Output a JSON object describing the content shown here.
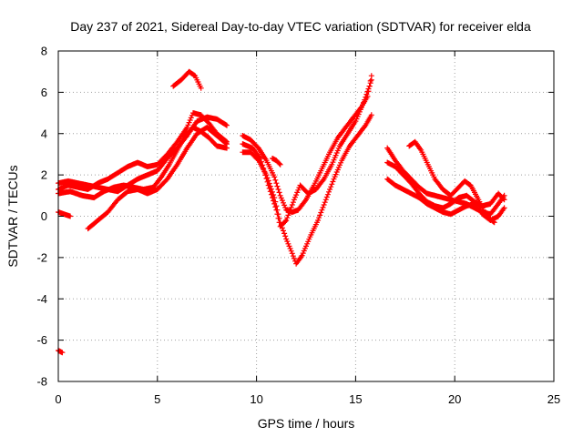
{
  "chart_data": {
    "type": "scatter",
    "title": "Day 237 of 2021, Sidereal Day-to-day VTEC variation (SDTVAR) for receiver elda",
    "xlabel": "GPS time / hours",
    "ylabel": "SDTVAR / TECUs",
    "xlim": [
      0,
      25
    ],
    "ylim": [
      -8,
      8
    ],
    "x_ticks": [
      0,
      5,
      10,
      15,
      20,
      25
    ],
    "y_ticks": [
      -8,
      -6,
      -4,
      -2,
      0,
      2,
      4,
      6,
      8
    ],
    "x_tick_labels": [
      "0",
      "5",
      "10",
      "15",
      "20",
      "25"
    ],
    "y_tick_labels": [
      "-8",
      "-6",
      "-4",
      "-2",
      "0",
      "2",
      "4",
      "6",
      "8"
    ],
    "grid": true,
    "marker": "+",
    "color": "#ff0000",
    "series": [
      {
        "name": "track-1",
        "points": [
          [
            0.0,
            1.3
          ],
          [
            0.5,
            1.5
          ],
          [
            1.0,
            1.4
          ],
          [
            1.5,
            1.3
          ],
          [
            2.0,
            1.6
          ],
          [
            2.5,
            1.8
          ],
          [
            3.0,
            2.1
          ],
          [
            3.5,
            2.4
          ],
          [
            4.0,
            2.6
          ],
          [
            4.5,
            2.4
          ],
          [
            5.0,
            2.5
          ],
          [
            5.5,
            3.0
          ],
          [
            6.0,
            3.6
          ],
          [
            6.5,
            4.3
          ],
          [
            6.8,
            5.0
          ],
          [
            7.2,
            4.9
          ],
          [
            7.6,
            4.5
          ],
          [
            8.0,
            4.0
          ],
          [
            8.5,
            3.6
          ]
        ]
      },
      {
        "name": "track-2",
        "points": [
          [
            0.0,
            1.1
          ],
          [
            0.6,
            1.2
          ],
          [
            1.2,
            1.0
          ],
          [
            1.8,
            0.9
          ],
          [
            2.3,
            1.2
          ],
          [
            2.8,
            1.4
          ],
          [
            3.3,
            1.5
          ],
          [
            3.8,
            1.4
          ],
          [
            4.3,
            1.3
          ],
          [
            4.8,
            1.4
          ],
          [
            5.2,
            1.9
          ],
          [
            5.6,
            2.5
          ],
          [
            6.0,
            3.2
          ],
          [
            6.4,
            3.9
          ],
          [
            6.8,
            4.3
          ],
          [
            7.2,
            4.1
          ],
          [
            7.6,
            3.8
          ],
          [
            8.0,
            3.4
          ],
          [
            8.5,
            3.3
          ]
        ]
      },
      {
        "name": "track-3",
        "points": [
          [
            0.0,
            1.6
          ],
          [
            0.5,
            1.7
          ],
          [
            1.0,
            1.6
          ],
          [
            1.5,
            1.5
          ],
          [
            2.0,
            1.4
          ],
          [
            2.5,
            1.3
          ],
          [
            3.0,
            1.2
          ],
          [
            3.5,
            1.5
          ],
          [
            4.0,
            1.8
          ],
          [
            4.5,
            2.0
          ],
          [
            5.0,
            2.2
          ],
          [
            5.5,
            2.8
          ],
          [
            6.0,
            3.3
          ],
          [
            6.5,
            3.9
          ],
          [
            7.0,
            4.6
          ],
          [
            7.5,
            4.8
          ],
          [
            8.0,
            4.7
          ],
          [
            8.5,
            4.4
          ]
        ]
      },
      {
        "name": "track-4",
        "points": [
          [
            1.5,
            -0.6
          ],
          [
            2.0,
            -0.2
          ],
          [
            2.5,
            0.2
          ],
          [
            3.0,
            0.8
          ],
          [
            3.5,
            1.2
          ],
          [
            4.0,
            1.3
          ],
          [
            4.5,
            1.1
          ],
          [
            5.0,
            1.3
          ],
          [
            5.5,
            1.8
          ],
          [
            6.0,
            2.5
          ],
          [
            6.5,
            3.3
          ],
          [
            7.0,
            4.0
          ],
          [
            7.5,
            4.3
          ],
          [
            8.0,
            3.9
          ],
          [
            8.5,
            3.5
          ]
        ]
      },
      {
        "name": "track-5",
        "points": [
          [
            5.8,
            6.3
          ],
          [
            6.2,
            6.6
          ],
          [
            6.6,
            7.0
          ],
          [
            6.9,
            6.8
          ],
          [
            7.2,
            6.2
          ]
        ]
      },
      {
        "name": "track-6",
        "points": [
          [
            0.0,
            0.2
          ],
          [
            0.3,
            0.1
          ],
          [
            0.6,
            0.0
          ]
        ]
      },
      {
        "name": "track-7",
        "points": [
          [
            0.0,
            -6.5
          ],
          [
            0.2,
            -6.6
          ]
        ]
      },
      {
        "name": "track-8",
        "points": [
          [
            9.3,
            3.9
          ],
          [
            9.7,
            3.7
          ],
          [
            10.1,
            3.3
          ],
          [
            10.5,
            2.7
          ],
          [
            10.9,
            1.9
          ],
          [
            11.2,
            1.0
          ],
          [
            11.5,
            0.3
          ],
          [
            11.8,
            0.2
          ],
          [
            12.1,
            0.3
          ],
          [
            12.5,
            0.8
          ],
          [
            12.9,
            1.5
          ],
          [
            13.3,
            2.3
          ],
          [
            13.7,
            3.1
          ],
          [
            14.1,
            3.8
          ],
          [
            14.5,
            4.3
          ],
          [
            14.9,
            4.8
          ],
          [
            15.3,
            5.3
          ],
          [
            15.6,
            5.8
          ],
          [
            15.8,
            6.8
          ]
        ]
      },
      {
        "name": "track-9",
        "points": [
          [
            9.3,
            3.1
          ],
          [
            9.7,
            3.1
          ],
          [
            10.1,
            2.7
          ],
          [
            10.5,
            2.0
          ],
          [
            10.9,
            0.9
          ],
          [
            11.2,
            -0.3
          ],
          [
            11.5,
            -1.1
          ],
          [
            11.8,
            -1.8
          ],
          [
            12.0,
            -2.3
          ],
          [
            12.3,
            -1.9
          ],
          [
            12.7,
            -1.0
          ],
          [
            13.1,
            -0.2
          ],
          [
            13.5,
            0.8
          ],
          [
            13.9,
            1.8
          ],
          [
            14.3,
            2.7
          ],
          [
            14.7,
            3.4
          ],
          [
            15.1,
            3.9
          ],
          [
            15.5,
            4.4
          ],
          [
            15.8,
            4.9
          ]
        ]
      },
      {
        "name": "track-10",
        "points": [
          [
            9.3,
            3.5
          ],
          [
            9.8,
            3.3
          ],
          [
            10.2,
            2.8
          ],
          [
            10.6,
            1.5
          ],
          [
            11.0,
            0.3
          ],
          [
            11.2,
            -0.5
          ],
          [
            11.5,
            -0.2
          ],
          [
            11.9,
            0.8
          ],
          [
            12.2,
            1.5
          ],
          [
            12.6,
            1.1
          ],
          [
            13.0,
            1.3
          ],
          [
            13.4,
            1.8
          ],
          [
            13.8,
            2.5
          ],
          [
            14.2,
            3.4
          ],
          [
            14.6,
            4.0
          ],
          [
            15.0,
            4.6
          ],
          [
            15.4,
            5.5
          ],
          [
            15.7,
            6.3
          ],
          [
            15.8,
            6.6
          ]
        ]
      },
      {
        "name": "track-11",
        "points": [
          [
            10.8,
            2.8
          ],
          [
            11.0,
            2.7
          ],
          [
            11.2,
            2.5
          ]
        ]
      },
      {
        "name": "track-12",
        "points": [
          [
            16.6,
            3.3
          ],
          [
            17.0,
            2.7
          ],
          [
            17.4,
            2.2
          ],
          [
            17.8,
            1.8
          ],
          [
            18.2,
            1.4
          ],
          [
            18.6,
            1.1
          ],
          [
            19.0,
            1.0
          ],
          [
            19.4,
            0.9
          ],
          [
            19.8,
            0.8
          ],
          [
            20.2,
            0.7
          ],
          [
            20.6,
            0.6
          ],
          [
            21.0,
            0.4
          ],
          [
            21.4,
            0.2
          ],
          [
            21.8,
            0.1
          ],
          [
            22.2,
            0.6
          ],
          [
            22.5,
            1.0
          ]
        ]
      },
      {
        "name": "track-13",
        "points": [
          [
            16.6,
            1.8
          ],
          [
            17.0,
            1.5
          ],
          [
            17.4,
            1.3
          ],
          [
            17.8,
            1.1
          ],
          [
            18.2,
            0.9
          ],
          [
            18.6,
            0.6
          ],
          [
            19.0,
            0.4
          ],
          [
            19.4,
            0.2
          ],
          [
            19.8,
            0.1
          ],
          [
            20.2,
            0.3
          ],
          [
            20.6,
            0.5
          ],
          [
            21.0,
            0.6
          ],
          [
            21.4,
            0.1
          ],
          [
            21.8,
            -0.2
          ],
          [
            22.2,
            0.0
          ],
          [
            22.5,
            0.4
          ]
        ]
      },
      {
        "name": "track-14",
        "points": [
          [
            16.6,
            2.6
          ],
          [
            17.0,
            2.4
          ],
          [
            17.4,
            2.0
          ],
          [
            17.8,
            1.6
          ],
          [
            18.2,
            1.1
          ],
          [
            18.6,
            0.7
          ],
          [
            19.0,
            0.5
          ],
          [
            19.4,
            0.4
          ],
          [
            19.8,
            0.6
          ],
          [
            20.2,
            0.9
          ],
          [
            20.6,
            1.0
          ],
          [
            21.0,
            0.7
          ],
          [
            21.4,
            0.5
          ],
          [
            21.8,
            0.6
          ],
          [
            22.2,
            1.1
          ],
          [
            22.5,
            0.8
          ]
        ]
      },
      {
        "name": "track-15",
        "points": [
          [
            17.7,
            3.4
          ],
          [
            18.0,
            3.6
          ],
          [
            18.3,
            3.2
          ],
          [
            18.6,
            2.6
          ],
          [
            19.0,
            1.8
          ],
          [
            19.4,
            1.3
          ],
          [
            19.8,
            1.0
          ],
          [
            20.2,
            1.4
          ],
          [
            20.5,
            1.7
          ],
          [
            20.8,
            1.5
          ],
          [
            21.2,
            0.8
          ],
          [
            21.6,
            0.0
          ],
          [
            22.0,
            -0.3
          ]
        ]
      }
    ]
  }
}
